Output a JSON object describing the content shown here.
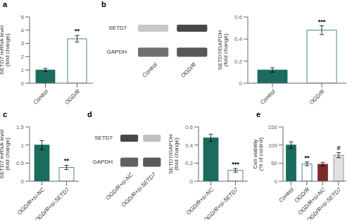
{
  "chart_data": [
    {
      "type": "bar",
      "title": "a",
      "categories": [
        "Control",
        "OGD/R"
      ],
      "values": [
        1.0,
        3.35
      ],
      "errors": [
        0.12,
        0.25
      ],
      "colors": [
        "#1b6b5e",
        "#ffffff"
      ],
      "edge_colors": [
        "#1b6b5e",
        "#1b6b5e"
      ],
      "ylabel": "SETD7 mRNA level\n(fold change)",
      "ylim": [
        0,
        5
      ],
      "yticks": [
        0,
        1,
        2,
        3,
        4,
        5
      ],
      "annotations": [
        {
          "category": "OGD/R",
          "text": "**"
        }
      ]
    },
    {
      "type": "blot",
      "title": "b",
      "categories": [
        "Control",
        "OGD/R"
      ],
      "series": [
        {
          "name": "SETD7",
          "colors": [
            "#c8c8c8",
            "#484848"
          ]
        },
        {
          "name": "GAPDH",
          "colors": [
            "#707070",
            "#585858"
          ]
        }
      ]
    },
    {
      "type": "bar",
      "categories": [
        "Control",
        "OGD/R"
      ],
      "values": [
        0.12,
        0.48
      ],
      "errors": [
        0.02,
        0.04
      ],
      "colors": [
        "#1b6b5e",
        "#ffffff"
      ],
      "edge_colors": [
        "#1b6b5e",
        "#1b6b5e"
      ],
      "ylabel": "SETD7/GAPDH\n(fold change)",
      "ylim": [
        0,
        0.6
      ],
      "yticks": [
        0,
        0.2,
        0.4,
        0.6
      ],
      "annotations": [
        {
          "category": "OGD/R",
          "text": "***"
        }
      ]
    },
    {
      "type": "bar",
      "title": "c",
      "categories": [
        "OGD/R+si-NC",
        "OGD/R+si-SETD7"
      ],
      "values": [
        1.0,
        0.38
      ],
      "errors": [
        0.12,
        0.06
      ],
      "colors": [
        "#1b6b5e",
        "#ffffff"
      ],
      "edge_colors": [
        "#1b6b5e",
        "#1b6b5e"
      ],
      "ylabel": "SETD7 mRNA level\n(fold change)",
      "ylim": [
        0,
        1.5
      ],
      "yticks": [
        0,
        0.5,
        1,
        1.5
      ],
      "annotations": [
        {
          "category": "OGD/R+si-SETD7",
          "text": "**"
        }
      ]
    },
    {
      "type": "blot",
      "title": "d",
      "categories": [
        "OGD/R+si-NC",
        "OGD/R+si-SETD7"
      ],
      "series": [
        {
          "name": "SETD7",
          "colors": [
            "#484848",
            "#c0c0c0"
          ]
        },
        {
          "name": "GAPDH",
          "colors": [
            "#606060",
            "#585858"
          ]
        }
      ]
    },
    {
      "type": "bar",
      "categories": [
        "OGD/R+si-NC",
        "OGD/R+si-SETD7"
      ],
      "values": [
        0.48,
        0.12
      ],
      "errors": [
        0.04,
        0.02
      ],
      "colors": [
        "#1b6b5e",
        "#ffffff"
      ],
      "edge_colors": [
        "#1b6b5e",
        "#1b6b5e"
      ],
      "ylabel": "SETD7/GAPDH\n(fold change)",
      "ylim": [
        0,
        0.6
      ],
      "yticks": [
        0,
        0.2,
        0.4,
        0.6
      ],
      "annotations": [
        {
          "category": "OGD/R+si-SETD7",
          "text": "***"
        }
      ]
    },
    {
      "type": "bar",
      "title": "e",
      "categories": [
        "Control",
        "OGD/R",
        "OGD/R+si-NC",
        "OGD/R+si-SETD7"
      ],
      "values": [
        100,
        48,
        47,
        72
      ],
      "errors": [
        9,
        5,
        5,
        7
      ],
      "colors": [
        "#1b6b5e",
        "#ffffff",
        "#7b2d2d",
        "#e0e0e0"
      ],
      "edge_colors": [
        "#1b6b5e",
        "#1b6b5e",
        "#7b2d2d",
        "#888888"
      ],
      "ylabel": "Cell viability\n(% of control)",
      "ylim": [
        0,
        150
      ],
      "yticks": [
        0,
        50,
        100,
        150
      ],
      "annotations": [
        {
          "category": "OGD/R",
          "text": "**"
        },
        {
          "category": "OGD/R+si-SETD7",
          "text": "#"
        }
      ]
    }
  ]
}
